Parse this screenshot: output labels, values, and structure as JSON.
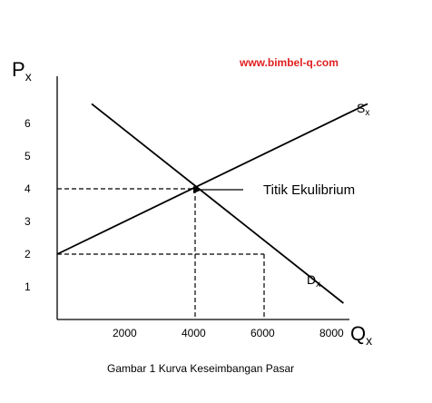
{
  "chart_data": {
    "type": "line",
    "title": "",
    "caption": "Gambar 1 Kurva Keseimbangan Pasar",
    "watermark": "www.bimbel-q.com",
    "watermark_color": "#e02020",
    "ylabel": {
      "main": "P",
      "sub": "x"
    },
    "xlabel": {
      "main": "Q",
      "sub": "x"
    },
    "xlim": [
      0,
      8000
    ],
    "ylim": [
      0,
      7
    ],
    "xticks": [
      {
        "value": 2000,
        "label": "2000"
      },
      {
        "value": 4000,
        "label": "4000"
      },
      {
        "value": 6000,
        "label": "6000"
      },
      {
        "value": 8000,
        "label": "8000"
      }
    ],
    "yticks": [
      {
        "value": 1,
        "label": "1"
      },
      {
        "value": 2,
        "label": "2"
      },
      {
        "value": 3,
        "label": "3"
      },
      {
        "value": 4,
        "label": "4"
      },
      {
        "value": 5,
        "label": "5"
      },
      {
        "value": 6,
        "label": "6"
      }
    ],
    "series": [
      {
        "label": {
          "main": "S",
          "sub": "x"
        },
        "points": [
          [
            0,
            2
          ],
          [
            9000,
            6.6
          ]
        ]
      },
      {
        "label": {
          "main": "D",
          "sub": "x"
        },
        "points": [
          [
            1000,
            6.6
          ],
          [
            8300,
            0.5
          ]
        ]
      }
    ],
    "guides": [
      {
        "x": 4000,
        "y": 4
      },
      {
        "x": 6000,
        "y": 2
      }
    ],
    "annotation": {
      "text": "Titik Ekulibrium",
      "x": 4000,
      "y": 4
    }
  }
}
